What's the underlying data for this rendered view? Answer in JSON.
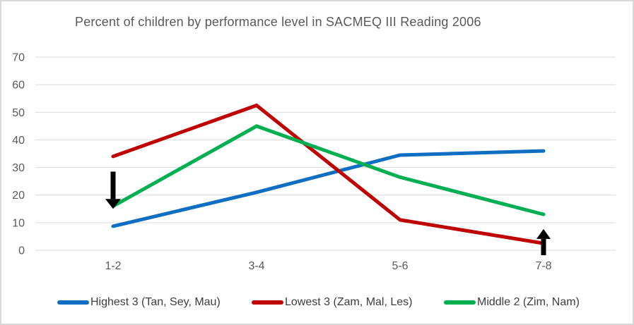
{
  "chart_data": {
    "type": "line",
    "title": "Percent of children by performance level in SACMEQ III Reading 2006",
    "categories": [
      "1-2",
      "3-4",
      "5-6",
      "7-8"
    ],
    "series": [
      {
        "name": "Highest 3 (Tan, Sey, Mau)",
        "color": "#0d6ec2",
        "values": [
          8.7,
          21,
          34.5,
          36
        ]
      },
      {
        "name": "Lowest 3 (Zam, Mal, Les)",
        "color": "#c00000",
        "values": [
          34,
          52.5,
          11,
          2.5
        ]
      },
      {
        "name": "Middle 2 (Zim, Nam)",
        "color": "#00b050",
        "values": [
          16,
          45,
          26.5,
          13
        ]
      }
    ],
    "xlabel": "",
    "ylabel": "",
    "ylim": [
      0,
      70
    ],
    "yticks": [
      0,
      10,
      20,
      30,
      40,
      50,
      60,
      70
    ],
    "grid": true,
    "legend_position": "bottom",
    "annotations": [
      {
        "type": "arrow",
        "direction": "down",
        "category": "1-2",
        "tail_value": 28.5,
        "tip_value": 15,
        "color": "#000000"
      },
      {
        "type": "arrow",
        "direction": "up",
        "category": "7-8",
        "tail_value": -1.8,
        "tip_value": 7.7,
        "color": "#000000"
      }
    ],
    "colors": {
      "title_text": "#595959",
      "axis_text": "#595959",
      "gridline": "#d9d9d9",
      "frame_border": "#d8d8d8",
      "annotation": "#000000"
    }
  }
}
